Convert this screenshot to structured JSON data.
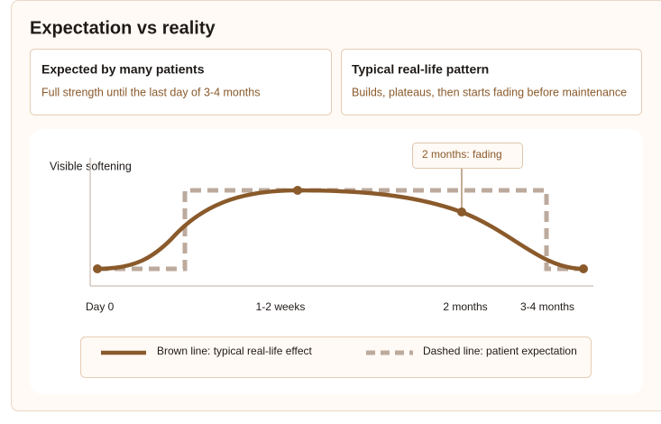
{
  "title": "Expectation vs reality",
  "cards": [
    {
      "heading": "Expected by many patients",
      "text": "Full strength until the last day of 3-4 months"
    },
    {
      "heading": "Typical real-life pattern",
      "text": "Builds, plateaus, then starts fading before maintenance"
    }
  ],
  "chart": {
    "y_label": "Visible softening",
    "x_labels": [
      "Day 0",
      "1-2 weeks",
      "2 months",
      "3-4 months"
    ],
    "callout": "2 months: fading",
    "legend": [
      "Brown line: typical real-life effect",
      "Dashed line: patient expectation"
    ]
  }
}
